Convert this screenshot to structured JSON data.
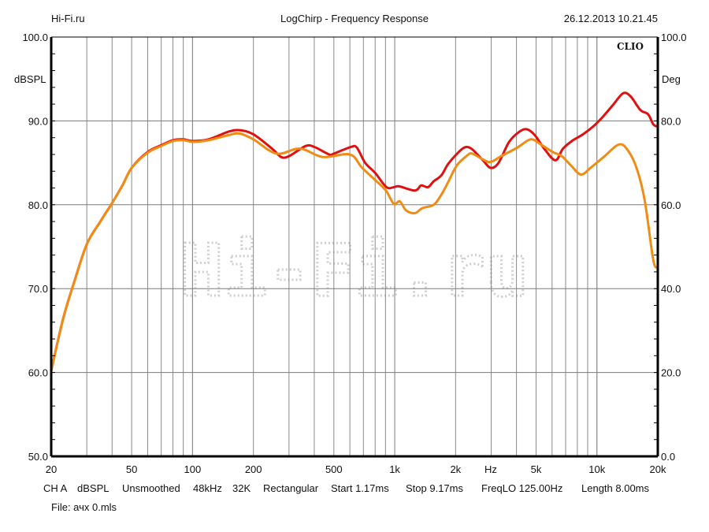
{
  "header": {
    "left": "Hi-Fi.ru",
    "center": "LogChirp - Frequency Response",
    "right": "26.12.2013 10.21.45"
  },
  "footer": {
    "settings": [
      "CH A",
      "dBSPL",
      "Unsmoothed",
      "48kHz",
      "32K",
      "Rectangular",
      "Start 1.17ms",
      "Stop 9.17ms",
      "FreqLO 125.00Hz",
      "Length 8.00ms"
    ],
    "file": "File: ачх 0.mls"
  },
  "brand": "CLIO",
  "watermark": "Hi-Fi.ru",
  "chart_data": {
    "type": "line",
    "title": "LogChirp - Frequency Response",
    "xlabel": "Hz",
    "ylabel": "dBSPL",
    "y2label": "Deg",
    "xscale": "log",
    "xlim": [
      20,
      20000
    ],
    "ylim": [
      50,
      100
    ],
    "y2lim": [
      0,
      100
    ],
    "grid": true,
    "x_ticks": [
      {
        "v": 20,
        "l": "20"
      },
      {
        "v": 50,
        "l": "50"
      },
      {
        "v": 100,
        "l": "100"
      },
      {
        "v": 200,
        "l": "200"
      },
      {
        "v": 500,
        "l": "500"
      },
      {
        "v": 1000,
        "l": "1k"
      },
      {
        "v": 2000,
        "l": "2k"
      },
      {
        "v": 5000,
        "l": "5k"
      },
      {
        "v": 10000,
        "l": "10k"
      },
      {
        "v": 20000,
        "l": "20k"
      }
    ],
    "x_unit_label": "Hz",
    "y_ticks": [
      "50.0",
      "60.0",
      "70.0",
      "80.0",
      "90.0",
      "100.0"
    ],
    "y2_ticks": [
      "0.0",
      "20.0",
      "40.0",
      "60.0",
      "80.0",
      "100.0"
    ],
    "series": [
      {
        "name": "red",
        "color": "#e01010",
        "x": [
          20,
          22.9,
          26,
          30,
          35,
          40,
          45,
          50,
          60,
          70,
          80,
          90,
          100,
          120,
          150,
          170,
          200,
          250,
          274,
          300,
          362,
          400,
          474,
          500,
          608,
          650,
          714,
          800,
          910,
          990,
          1050,
          1260,
          1350,
          1460,
          1560,
          1700,
          1830,
          2000,
          2200,
          2390,
          2730,
          2980,
          3260,
          3680,
          4130,
          4500,
          4930,
          5520,
          6240,
          6800,
          7620,
          8540,
          9650,
          10800,
          12100,
          13500,
          14700,
          16400,
          17900,
          19000,
          20000
        ],
        "y": [
          60.2,
          66.4,
          70.8,
          75.3,
          78.0,
          80.2,
          82.3,
          84.4,
          86.3,
          87.1,
          87.7,
          87.8,
          87.6,
          87.8,
          88.7,
          88.9,
          88.4,
          86.6,
          85.7,
          85.8,
          87.0,
          86.9,
          86.0,
          86.1,
          86.9,
          86.8,
          85.0,
          83.8,
          82.1,
          82.1,
          82.2,
          81.7,
          82.3,
          82.1,
          82.8,
          83.5,
          84.8,
          85.9,
          86.8,
          86.7,
          85.3,
          84.4,
          85.0,
          87.5,
          88.7,
          89.0,
          88.3,
          86.6,
          85.3,
          86.7,
          87.7,
          88.4,
          89.4,
          90.6,
          92.0,
          93.3,
          92.9,
          91.3,
          90.8,
          89.6,
          89.3
        ]
      },
      {
        "name": "orange",
        "color": "#f08c14",
        "x": [
          20,
          22.9,
          26,
          30,
          35,
          40,
          45,
          50,
          60,
          70,
          80,
          90,
          100,
          120,
          150,
          170,
          200,
          260,
          340,
          440,
          600,
          690,
          830,
          910,
          990,
          1060,
          1140,
          1260,
          1370,
          1560,
          1700,
          1830,
          2030,
          2290,
          2420,
          2730,
          2980,
          3360,
          4030,
          4700,
          5270,
          6040,
          6700,
          7430,
          8330,
          9300,
          10800,
          12900,
          14400,
          15900,
          17300,
          19000,
          20000
        ],
        "y": [
          60.2,
          66.4,
          70.8,
          75.3,
          78.0,
          80.2,
          82.3,
          84.4,
          86.2,
          87.0,
          87.6,
          87.7,
          87.5,
          87.7,
          88.3,
          88.5,
          87.8,
          86.1,
          86.7,
          85.7,
          86.0,
          84.4,
          82.6,
          81.6,
          80.1,
          80.4,
          79.3,
          79.0,
          79.6,
          80.0,
          81.2,
          82.6,
          84.7,
          85.9,
          86.1,
          85.4,
          85.1,
          85.8,
          86.8,
          87.8,
          87.2,
          86.3,
          85.8,
          84.7,
          83.6,
          84.4,
          85.7,
          87.2,
          86.3,
          84.0,
          80.3,
          73.4,
          72.5
        ]
      }
    ]
  }
}
